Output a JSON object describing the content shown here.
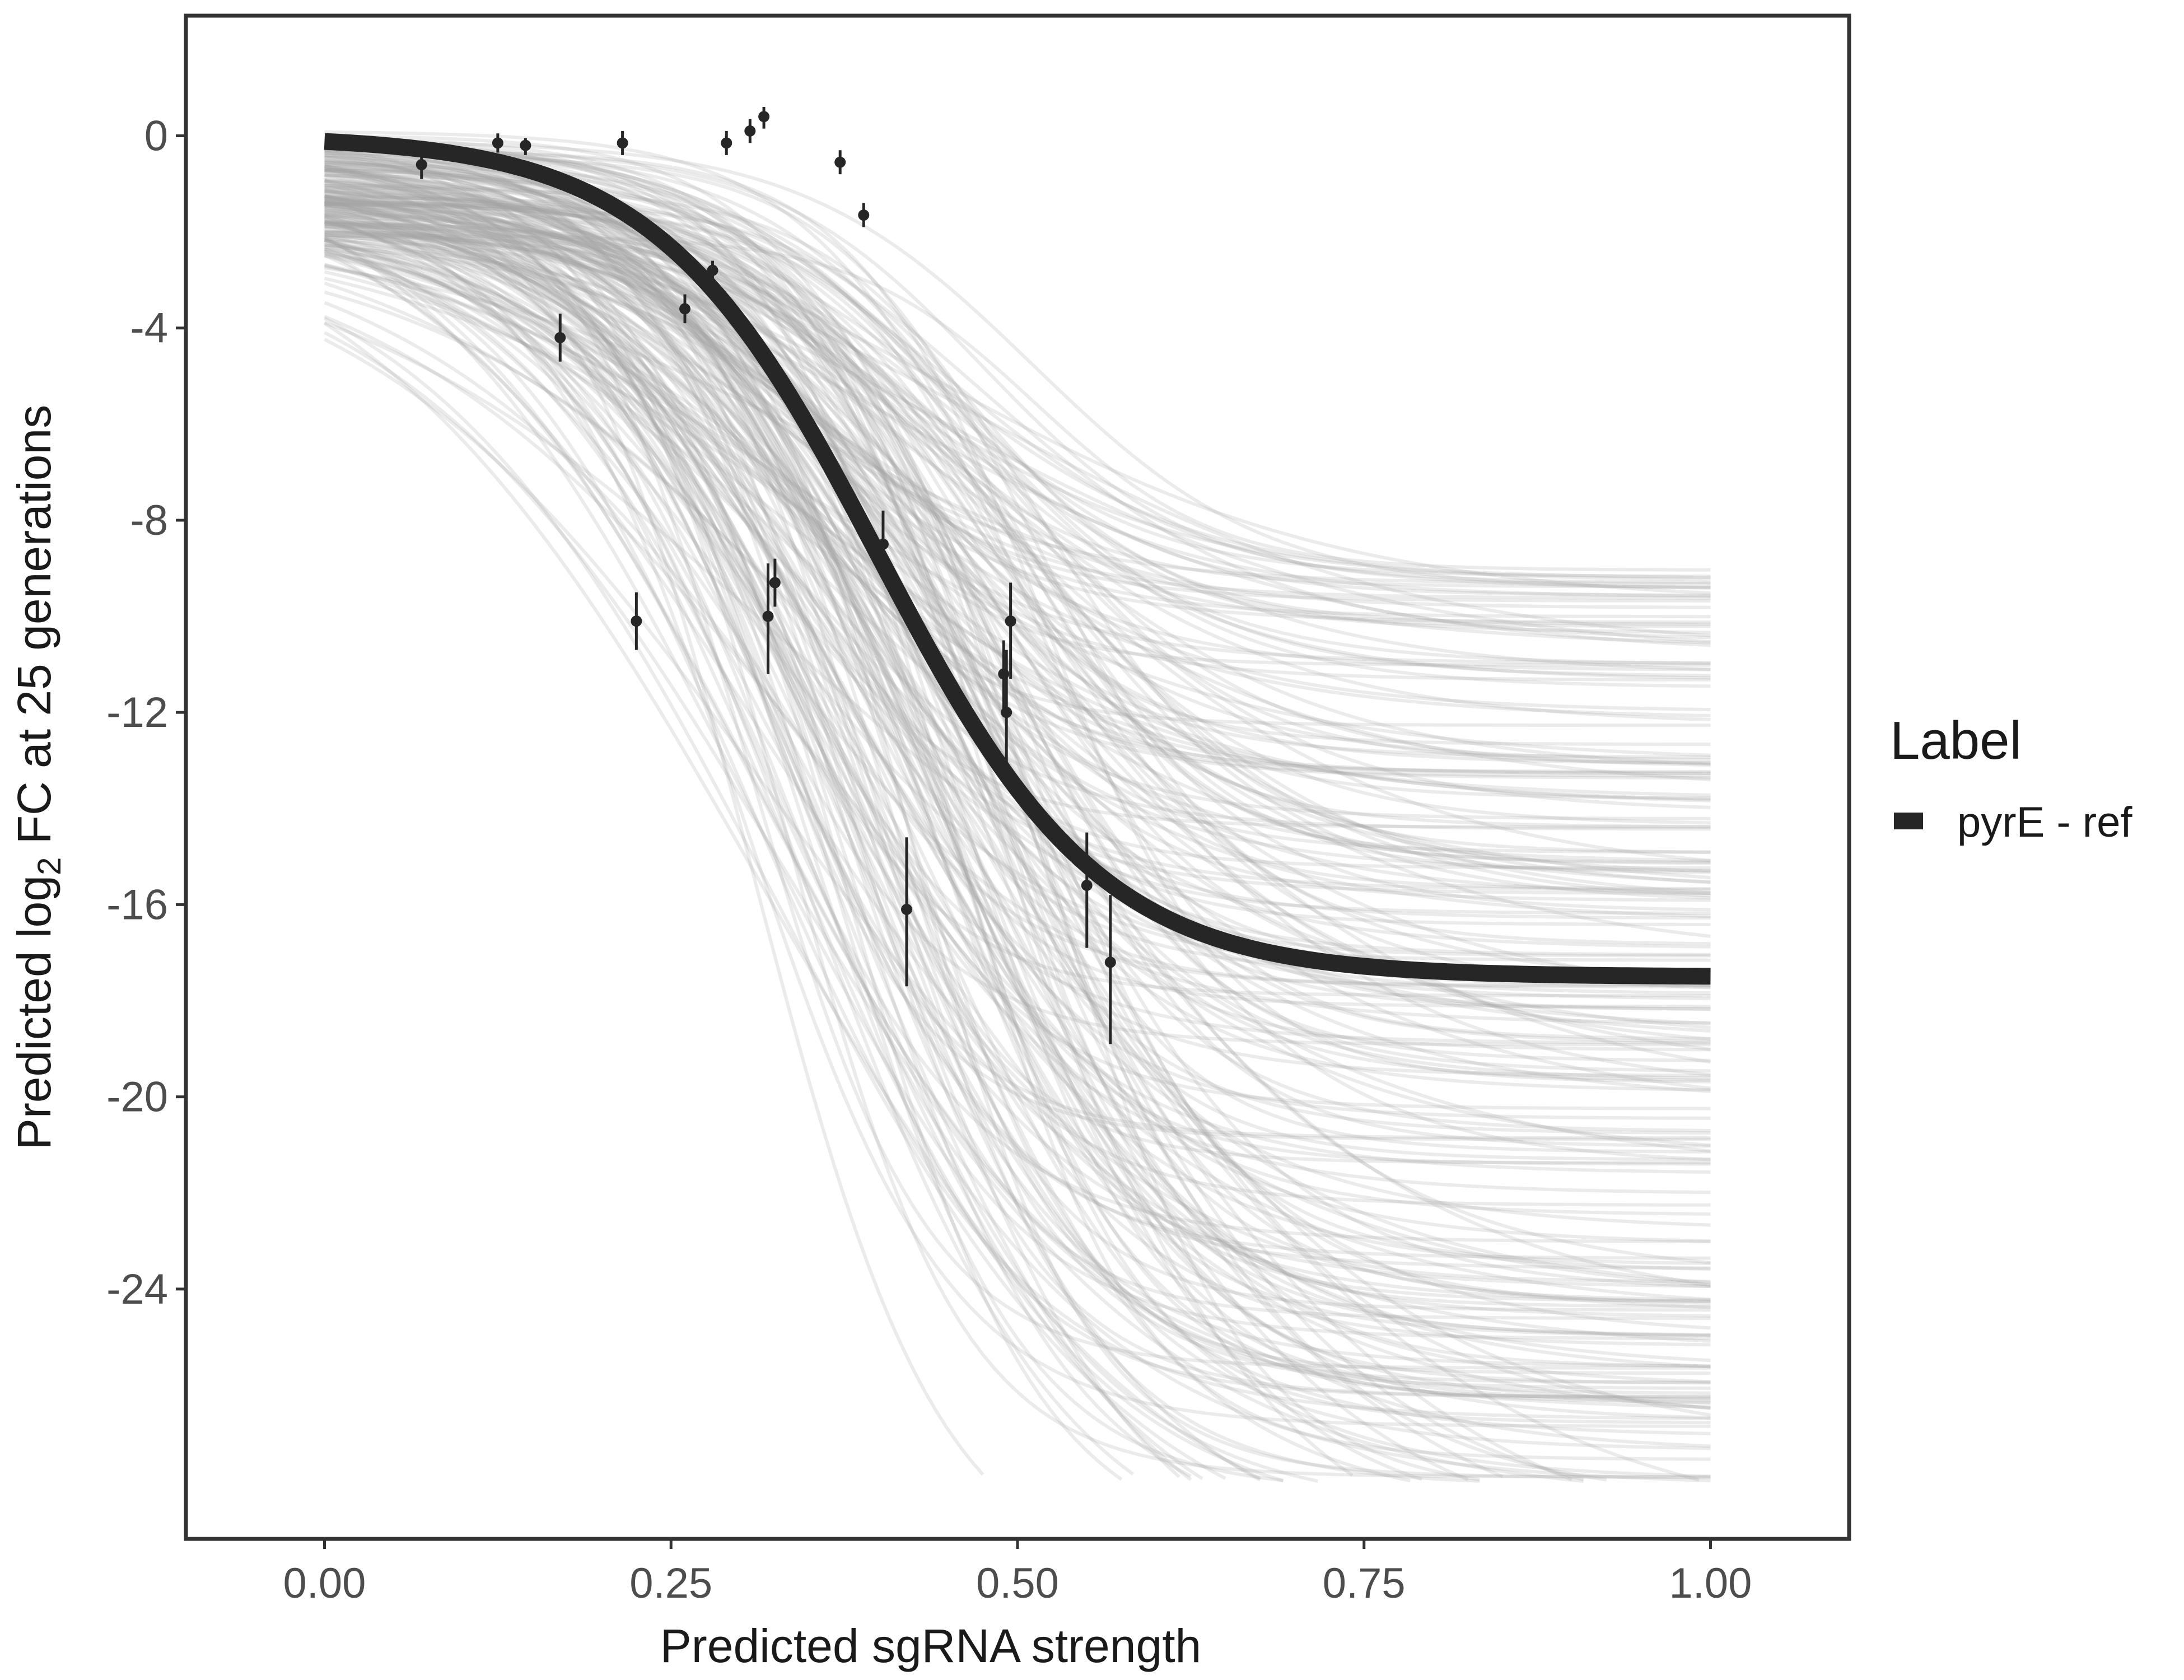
{
  "chart_data": {
    "type": "line",
    "xlabel": "Predicted sgRNA strength",
    "ylabel_prefix": "Predicted  log",
    "ylabel_subscript": "2",
    "ylabel_suffix": " FC at 25 generations",
    "xlim": [
      -0.1,
      1.1
    ],
    "ylim": [
      -29.2,
      2.5
    ],
    "x_ticks": [
      0,
      0.25,
      0.5,
      0.75,
      1
    ],
    "x_tick_labels": [
      "0.00",
      "0.25",
      "0.50",
      "0.75",
      "1.00"
    ],
    "y_ticks": [
      0,
      -4,
      -8,
      -12,
      -16,
      -20,
      -24
    ],
    "y_tick_labels": [
      "0",
      "-4",
      "-8",
      "-12",
      "-16",
      "-20",
      "-24"
    ],
    "grid": false,
    "legend": {
      "title": "Label",
      "placement": "right",
      "entries": [
        {
          "label": "pyrE - ref",
          "color": "#262626"
        }
      ]
    },
    "colors": {
      "fit_line": "#262626",
      "posterior_draws": "#a6a6a6",
      "points": "#262626",
      "frame": "#333333"
    },
    "fit_curve": {
      "name": "pyrE - ref",
      "model": "logistic",
      "upper": 0.0,
      "lower": -17.5,
      "midpoint": 0.4,
      "slope": 12.5
    },
    "posterior_draws": {
      "count": 240,
      "x_range": [
        0,
        1
      ],
      "lower_range": [
        -30.5,
        -8.8
      ],
      "midpoint_range": [
        0.3,
        0.52
      ],
      "slope_range": [
        6.0,
        16.0
      ],
      "upper_range": [
        -2.1,
        0.1
      ],
      "y_floor": -28.0
    },
    "points": [
      {
        "x": 0.07,
        "y": -0.6,
        "lo": -0.9,
        "hi": -0.3
      },
      {
        "x": 0.125,
        "y": -0.15,
        "lo": -0.35,
        "hi": 0.05
      },
      {
        "x": 0.145,
        "y": -0.2,
        "lo": -0.4,
        "hi": -0.05
      },
      {
        "x": 0.17,
        "y": -4.2,
        "lo": -4.7,
        "hi": -3.7
      },
      {
        "x": 0.215,
        "y": -0.15,
        "lo": -0.4,
        "hi": 0.1
      },
      {
        "x": 0.225,
        "y": -10.1,
        "lo": -10.7,
        "hi": -9.5
      },
      {
        "x": 0.26,
        "y": -3.6,
        "lo": -3.9,
        "hi": -3.3
      },
      {
        "x": 0.28,
        "y": -2.8,
        "lo": -3.0,
        "hi": -2.6
      },
      {
        "x": 0.29,
        "y": -0.15,
        "lo": -0.4,
        "hi": 0.1
      },
      {
        "x": 0.307,
        "y": 0.1,
        "lo": -0.15,
        "hi": 0.35
      },
      {
        "x": 0.317,
        "y": 0.4,
        "lo": 0.15,
        "hi": 0.6
      },
      {
        "x": 0.32,
        "y": -10.0,
        "lo": -11.2,
        "hi": -8.9
      },
      {
        "x": 0.325,
        "y": -9.3,
        "lo": -9.8,
        "hi": -8.8
      },
      {
        "x": 0.372,
        "y": -0.55,
        "lo": -0.8,
        "hi": -0.3
      },
      {
        "x": 0.389,
        "y": -1.65,
        "lo": -1.9,
        "hi": -1.4
      },
      {
        "x": 0.403,
        "y": -8.5,
        "lo": -9.2,
        "hi": -7.8
      },
      {
        "x": 0.42,
        "y": -16.1,
        "lo": -17.7,
        "hi": -14.6
      },
      {
        "x": 0.49,
        "y": -11.2,
        "lo": -12.0,
        "hi": -10.5
      },
      {
        "x": 0.492,
        "y": -12.0,
        "lo": -13.4,
        "hi": -10.7
      },
      {
        "x": 0.495,
        "y": -10.1,
        "lo": -11.3,
        "hi": -9.3
      },
      {
        "x": 0.55,
        "y": -15.6,
        "lo": -16.9,
        "hi": -14.5
      },
      {
        "x": 0.567,
        "y": -17.2,
        "lo": -18.9,
        "hi": -15.8
      }
    ]
  }
}
